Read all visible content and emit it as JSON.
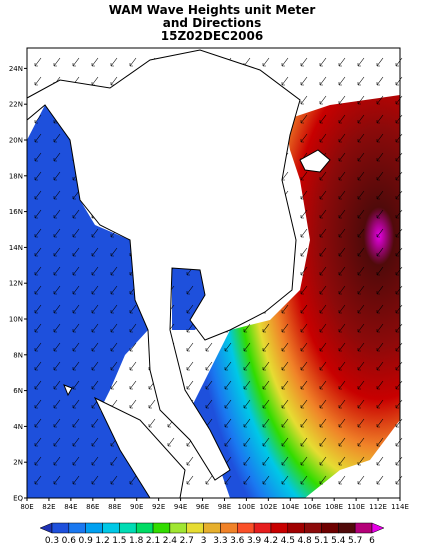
{
  "title": [
    "WAM Wave Heights unit Meter",
    "and Directions",
    "15Z02DEC2006"
  ],
  "axes": {
    "lon_labels": [
      "80E",
      "82E",
      "84E",
      "86E",
      "88E",
      "90E",
      "92E",
      "94E",
      "96E",
      "98E",
      "100E",
      "102E",
      "104E",
      "106E",
      "108E",
      "110E",
      "112E",
      "114E"
    ],
    "lat_labels": [
      "EQ",
      "2N",
      "4N",
      "6N",
      "8N",
      "10N",
      "12N",
      "14N",
      "16N",
      "18N",
      "20N",
      "22N",
      "24N"
    ]
  },
  "colorbar": {
    "labels": [
      0.3,
      0.6,
      0.9,
      1.2,
      1.5,
      1.8,
      2.1,
      2.4,
      2.7,
      3,
      3.3,
      3.6,
      3.9,
      4.2,
      4.5,
      4.8,
      5.1,
      5.4,
      5.7,
      6
    ],
    "colors": [
      "#1e32b4",
      "#1e50dc",
      "#1a78f0",
      "#00a0f0",
      "#00c8e6",
      "#00dcb4",
      "#00dc64",
      "#32dc00",
      "#a0e632",
      "#e6dc32",
      "#e6af2d",
      "#f08228",
      "#fa5028",
      "#e61e1e",
      "#c80000",
      "#a00000",
      "#8c0a0a",
      "#6e0000",
      "#500a0a",
      "#b40078",
      "#e600e6"
    ]
  }
}
